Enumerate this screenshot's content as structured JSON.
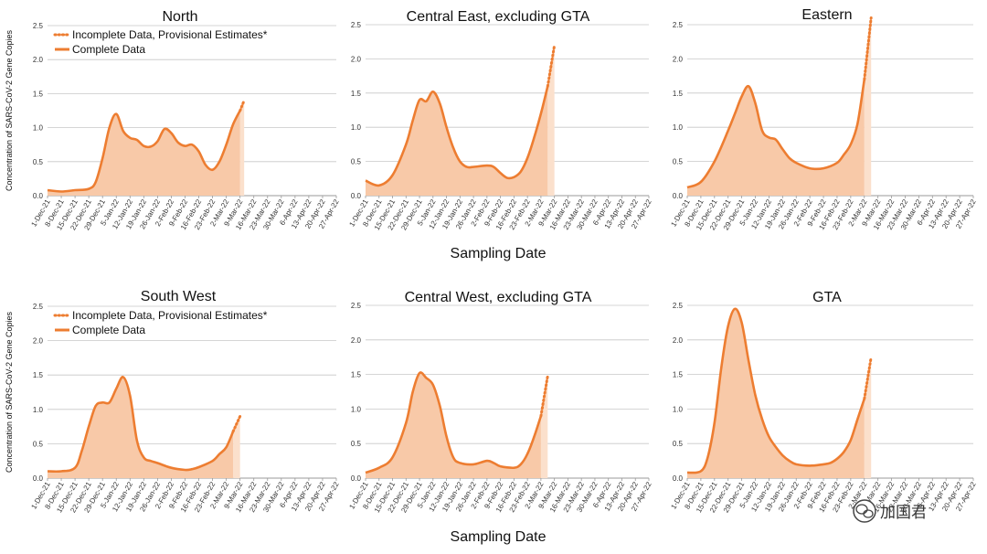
{
  "chart_data": [
    {
      "type": "area",
      "title": "North",
      "ylabel": "Concentration of SARS-CoV-2 Gene Copies",
      "ylim": [
        0,
        2.5
      ],
      "yticks": [
        "0.0",
        "0.5",
        "1.0",
        "1.5",
        "2.0",
        "2.5"
      ],
      "date_labels": [
        "1-Dec-21",
        "8-Dec-21",
        "15-Dec-21",
        "22-Dec-21",
        "29-Dec-21",
        "5-Jan-22",
        "12-Jan-22",
        "19-Jan-22",
        "26-Jan-22",
        "2-Feb-22",
        "9-Feb-22",
        "16-Feb-22",
        "23-Feb-22",
        "2-Mar-22",
        "9-Mar-22",
        "16-Mar-22",
        "23-Mar-22",
        "30-Mar-22",
        "6-Apr-22",
        "13-Apr-22",
        "20-Apr-22",
        "27-Apr-22"
      ],
      "complete": [
        [
          0,
          0.08
        ],
        [
          1,
          0.06
        ],
        [
          2,
          0.08
        ],
        [
          3,
          0.1
        ],
        [
          3.5,
          0.2
        ],
        [
          4,
          0.55
        ],
        [
          4.5,
          1.0
        ],
        [
          5,
          1.2
        ],
        [
          5.5,
          0.95
        ],
        [
          6,
          0.85
        ],
        [
          6.5,
          0.82
        ],
        [
          7,
          0.73
        ],
        [
          7.5,
          0.72
        ],
        [
          8,
          0.8
        ],
        [
          8.5,
          0.98
        ],
        [
          9,
          0.92
        ],
        [
          9.5,
          0.78
        ],
        [
          10,
          0.73
        ],
        [
          10.5,
          0.75
        ],
        [
          11,
          0.65
        ],
        [
          11.5,
          0.45
        ],
        [
          12,
          0.38
        ],
        [
          12.5,
          0.5
        ],
        [
          13,
          0.75
        ],
        [
          13.5,
          1.05
        ],
        [
          14,
          1.25
        ]
      ],
      "provisional": [
        [
          14,
          1.25
        ],
        [
          14.3,
          1.4
        ]
      ],
      "xlabel": "",
      "legend": {
        "provisional": "Incomplete Data, Provisional Estimates*",
        "complete": "Complete Data"
      }
    },
    {
      "type": "area",
      "title": "Central East, excluding GTA",
      "ylim": [
        0,
        2.5
      ],
      "yticks": [
        "0.0",
        "0.5",
        "1.0",
        "1.5",
        "2.0",
        "2.5"
      ],
      "date_labels": [
        "1-Dec-21",
        "8-Dec-21",
        "15-Dec-21",
        "22-Dec-21",
        "29-Dec-21",
        "5-Jan-22",
        "12-Jan-22",
        "19-Jan-22",
        "26-Jan-22",
        "2-Feb-22",
        "9-Feb-22",
        "16-Feb-22",
        "23-Feb-22",
        "2-Mar-22",
        "9-Mar-22",
        "16-Mar-22",
        "23-Mar-22",
        "30-Mar-22",
        "6-Apr-22",
        "13-Apr-22",
        "20-Apr-22",
        "27-Apr-22"
      ],
      "complete": [
        [
          0,
          0.22
        ],
        [
          1,
          0.15
        ],
        [
          2,
          0.3
        ],
        [
          3,
          0.75
        ],
        [
          3.5,
          1.1
        ],
        [
          4,
          1.4
        ],
        [
          4.5,
          1.38
        ],
        [
          5,
          1.52
        ],
        [
          5.5,
          1.35
        ],
        [
          6,
          1.0
        ],
        [
          6.5,
          0.7
        ],
        [
          7,
          0.5
        ],
        [
          7.5,
          0.42
        ],
        [
          8,
          0.42
        ],
        [
          9,
          0.44
        ],
        [
          9.5,
          0.42
        ],
        [
          10,
          0.33
        ],
        [
          10.5,
          0.26
        ],
        [
          11,
          0.27
        ],
        [
          11.5,
          0.35
        ],
        [
          12,
          0.55
        ],
        [
          12.5,
          0.85
        ],
        [
          13,
          1.2
        ],
        [
          13.5,
          1.6
        ]
      ],
      "provisional": [
        [
          13.5,
          1.6
        ],
        [
          14,
          2.2
        ]
      ],
      "xlabel": "Sampling Date"
    },
    {
      "type": "area",
      "title": "Eastern",
      "ylim": [
        0,
        2.5
      ],
      "yticks": [
        "0.0",
        "0.5",
        "1.0",
        "1.5",
        "2.0",
        "2.5"
      ],
      "date_labels": [
        "1-Dec-21",
        "8-Dec-21",
        "15-Dec-21",
        "22-Dec-21",
        "29-Dec-21",
        "5-Jan-22",
        "12-Jan-22",
        "19-Jan-22",
        "26-Jan-22",
        "2-Feb-22",
        "9-Feb-22",
        "16-Feb-22",
        "23-Feb-22",
        "2-Mar-22",
        "9-Mar-22",
        "16-Mar-22",
        "23-Mar-22",
        "30-Mar-22",
        "6-Apr-22",
        "13-Apr-22",
        "20-Apr-22",
        "27-Apr-22"
      ],
      "complete": [
        [
          0,
          0.12
        ],
        [
          1,
          0.2
        ],
        [
          2,
          0.5
        ],
        [
          3,
          0.95
        ],
        [
          3.5,
          1.2
        ],
        [
          4,
          1.45
        ],
        [
          4.5,
          1.6
        ],
        [
          5,
          1.35
        ],
        [
          5.5,
          0.95
        ],
        [
          6,
          0.85
        ],
        [
          6.5,
          0.82
        ],
        [
          7,
          0.68
        ],
        [
          7.5,
          0.55
        ],
        [
          8,
          0.48
        ],
        [
          9,
          0.4
        ],
        [
          10,
          0.4
        ],
        [
          11,
          0.48
        ],
        [
          11.5,
          0.6
        ],
        [
          12,
          0.75
        ],
        [
          12.5,
          1.05
        ],
        [
          13,
          1.7
        ]
      ],
      "provisional": [
        [
          13,
          1.7
        ],
        [
          13.5,
          2.6
        ]
      ],
      "xlabel": ""
    },
    {
      "type": "area",
      "title": "South West",
      "ylabel": "Concentration of SARS-CoV-2 Gene Copies",
      "ylim": [
        0,
        2.5
      ],
      "yticks": [
        "0.0",
        "0.5",
        "1.0",
        "1.5",
        "2.0",
        "2.5"
      ],
      "date_labels": [
        "1-Dec-21",
        "8-Dec-21",
        "15-Dec-21",
        "22-Dec-21",
        "29-Dec-21",
        "5-Jan-22",
        "12-Jan-22",
        "19-Jan-22",
        "26-Jan-22",
        "2-Feb-22",
        "9-Feb-22",
        "16-Feb-22",
        "23-Feb-22",
        "2-Mar-22",
        "9-Mar-22",
        "16-Mar-22",
        "23-Mar-22",
        "30-Mar-22",
        "6-Apr-22",
        "13-Apr-22",
        "20-Apr-22",
        "27-Apr-22"
      ],
      "complete": [
        [
          0,
          0.1
        ],
        [
          1,
          0.1
        ],
        [
          2,
          0.15
        ],
        [
          2.5,
          0.4
        ],
        [
          3,
          0.75
        ],
        [
          3.5,
          1.05
        ],
        [
          4,
          1.1
        ],
        [
          4.5,
          1.1
        ],
        [
          5,
          1.3
        ],
        [
          5.5,
          1.47
        ],
        [
          6,
          1.2
        ],
        [
          6.5,
          0.55
        ],
        [
          7,
          0.3
        ],
        [
          7.5,
          0.25
        ],
        [
          8,
          0.22
        ],
        [
          9,
          0.15
        ],
        [
          10,
          0.12
        ],
        [
          10.5,
          0.13
        ],
        [
          11,
          0.16
        ],
        [
          12,
          0.25
        ],
        [
          12.5,
          0.35
        ],
        [
          13,
          0.45
        ],
        [
          13.5,
          0.68
        ]
      ],
      "provisional": [
        [
          13.5,
          0.68
        ],
        [
          14,
          0.9
        ]
      ],
      "xlabel": "",
      "legend": {
        "provisional": "Incomplete Data, Provisional Estimates*",
        "complete": "Complete Data"
      }
    },
    {
      "type": "area",
      "title": "Central West, excluding GTA",
      "ylim": [
        0,
        2.5
      ],
      "yticks": [
        "0.0",
        "0.5",
        "1.0",
        "1.5",
        "2.0",
        "2.5"
      ],
      "date_labels": [
        "1-Dec-21",
        "8-Dec-21",
        "15-Dec-21",
        "22-Dec-21",
        "29-Dec-21",
        "5-Jan-22",
        "12-Jan-22",
        "19-Jan-22",
        "26-Jan-22",
        "2-Feb-22",
        "9-Feb-22",
        "16-Feb-22",
        "23-Feb-22",
        "2-Mar-22",
        "9-Mar-22",
        "16-Mar-22",
        "23-Mar-22",
        "30-Mar-22",
        "6-Apr-22",
        "13-Apr-22",
        "20-Apr-22",
        "27-Apr-22"
      ],
      "complete": [
        [
          0,
          0.08
        ],
        [
          1,
          0.15
        ],
        [
          2,
          0.3
        ],
        [
          3,
          0.8
        ],
        [
          3.5,
          1.25
        ],
        [
          4,
          1.52
        ],
        [
          4.5,
          1.45
        ],
        [
          5,
          1.35
        ],
        [
          5.5,
          1.05
        ],
        [
          6,
          0.6
        ],
        [
          6.5,
          0.3
        ],
        [
          7,
          0.22
        ],
        [
          8,
          0.2
        ],
        [
          9,
          0.25
        ],
        [
          9.5,
          0.22
        ],
        [
          10,
          0.17
        ],
        [
          11,
          0.15
        ],
        [
          11.5,
          0.2
        ],
        [
          12,
          0.35
        ],
        [
          12.5,
          0.6
        ],
        [
          13,
          0.9
        ]
      ],
      "provisional": [
        [
          13,
          0.9
        ],
        [
          13.5,
          1.48
        ]
      ],
      "xlabel": "Sampling Date"
    },
    {
      "type": "area",
      "title": "GTA",
      "ylim": [
        0,
        2.5
      ],
      "yticks": [
        "0.0",
        "0.5",
        "1.0",
        "1.5",
        "2.0",
        "2.5"
      ],
      "date_labels": [
        "1-Dec-21",
        "8-Dec-21",
        "15-Dec-21",
        "22-Dec-21",
        "29-Dec-21",
        "5-Jan-22",
        "12-Jan-22",
        "19-Jan-22",
        "26-Jan-22",
        "2-Feb-22",
        "9-Feb-22",
        "16-Feb-22",
        "23-Feb-22",
        "2-Mar-22",
        "9-Mar-22",
        "16-Mar-22",
        "23-Mar-22",
        "30-Mar-22",
        "6-Apr-22",
        "13-Apr-22",
        "20-Apr-22",
        "27-Apr-22"
      ],
      "complete": [
        [
          0,
          0.08
        ],
        [
          1,
          0.1
        ],
        [
          1.5,
          0.3
        ],
        [
          2,
          0.8
        ],
        [
          2.5,
          1.6
        ],
        [
          3,
          2.2
        ],
        [
          3.5,
          2.45
        ],
        [
          4,
          2.25
        ],
        [
          4.5,
          1.7
        ],
        [
          5,
          1.2
        ],
        [
          5.5,
          0.85
        ],
        [
          6,
          0.6
        ],
        [
          6.5,
          0.45
        ],
        [
          7,
          0.33
        ],
        [
          7.5,
          0.25
        ],
        [
          8,
          0.2
        ],
        [
          9,
          0.18
        ],
        [
          10,
          0.2
        ],
        [
          10.5,
          0.22
        ],
        [
          11,
          0.28
        ],
        [
          11.5,
          0.38
        ],
        [
          12,
          0.55
        ],
        [
          12.5,
          0.85
        ],
        [
          13,
          1.15
        ]
      ],
      "provisional": [
        [
          13,
          1.15
        ],
        [
          13.5,
          1.75
        ]
      ],
      "xlabel": ""
    }
  ],
  "colors": {
    "line": "#ed7d31",
    "fill": "#f8c9a8",
    "provisional_fill": "#fbe0cc",
    "grid": "#c8c8c8",
    "axis": "#999999"
  },
  "watermark": {
    "icon": "wechat-icon",
    "text": "加国君"
  }
}
